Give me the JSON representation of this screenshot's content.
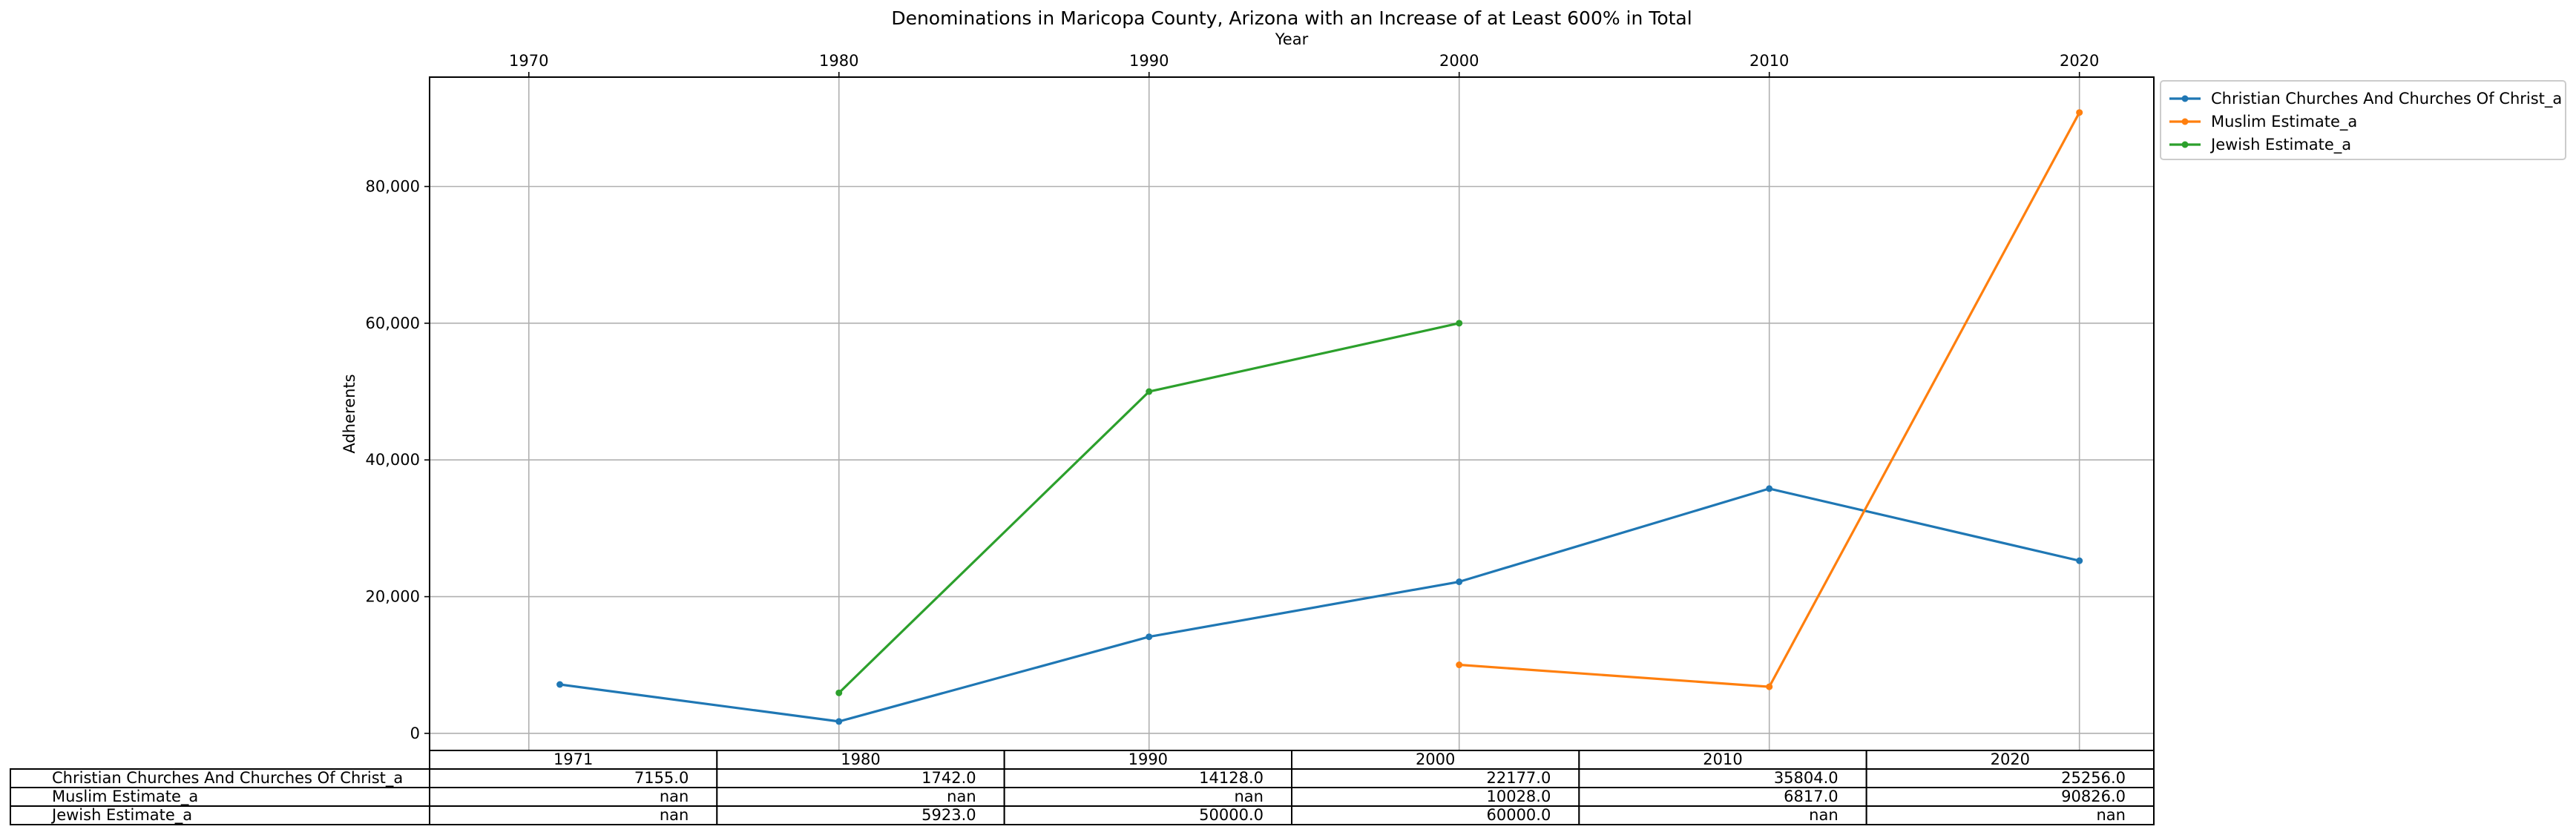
{
  "chart_data": {
    "type": "line",
    "title": "Denominations in Maricopa County, Arizona with an Increase of at Least 600% in Total",
    "xlabel": "Year",
    "ylabel": "Adherents",
    "xlim": [
      1966.8,
      2022.4
    ],
    "ylim": [
      -2500,
      96000
    ],
    "x_ticks": [
      1970,
      1980,
      1990,
      2000,
      2010,
      2020
    ],
    "x_tick_labels": [
      "1970",
      "1980",
      "1990",
      "2000",
      "2010",
      "2020"
    ],
    "y_ticks": [
      0,
      20000,
      40000,
      60000,
      80000
    ],
    "y_tick_labels": [
      "0",
      "20,000",
      "40,000",
      "60,000",
      "80,000"
    ],
    "grid": true,
    "legend_position": "upper right, outside plot",
    "x": [
      1971,
      1980,
      1990,
      2000,
      2010,
      2020
    ],
    "series": [
      {
        "name": "Christian Churches And Churches Of Christ_a",
        "color": "#1f77b4",
        "values": [
          7155.0,
          1742.0,
          14128.0,
          22177.0,
          35804.0,
          25256.0
        ]
      },
      {
        "name": "Muslim Estimate_a",
        "color": "#ff7f0e",
        "values": [
          null,
          null,
          null,
          10028.0,
          6817.0,
          90826.0
        ]
      },
      {
        "name": "Jewish Estimate_a",
        "color": "#2ca02c",
        "values": [
          null,
          5923.0,
          50000.0,
          60000.0,
          null,
          null
        ]
      }
    ],
    "table": {
      "col_labels": [
        "1971",
        "1980",
        "1990",
        "2000",
        "2010",
        "2020"
      ],
      "rows": [
        {
          "label": "Christian Churches And Churches Of Christ_a",
          "cells": [
            "7155.0",
            "1742.0",
            "14128.0",
            "22177.0",
            "35804.0",
            "25256.0"
          ]
        },
        {
          "label": "Muslim Estimate_a",
          "cells": [
            "nan",
            "nan",
            "nan",
            "10028.0",
            "6817.0",
            "90826.0"
          ]
        },
        {
          "label": "Jewish Estimate_a",
          "cells": [
            "nan",
            "5923.0",
            "50000.0",
            "60000.0",
            "nan",
            "nan"
          ]
        }
      ]
    }
  }
}
